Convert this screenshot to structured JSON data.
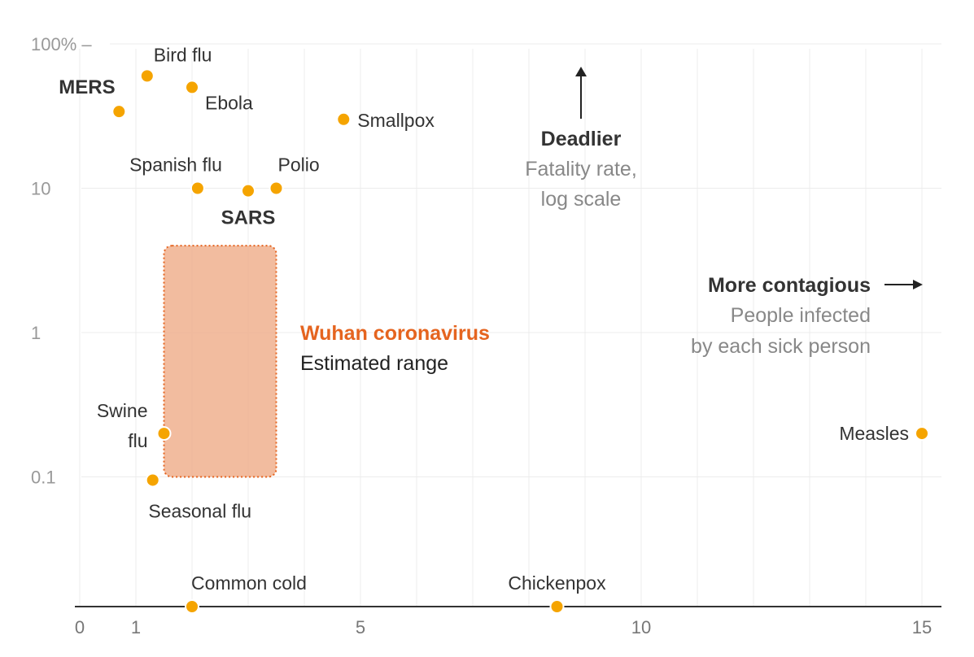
{
  "chart_data": {
    "type": "scatter",
    "x_axis": {
      "label": "People infected by each sick person",
      "range": [
        0,
        15.5
      ],
      "ticks": [
        0,
        1,
        5,
        10,
        15
      ],
      "tick_labels": [
        "0",
        "1",
        "5",
        "10",
        "15"
      ]
    },
    "y_axis": {
      "label": "Fatality rate, log scale",
      "scale": "log",
      "range_percent": [
        0.01,
        100
      ],
      "ticks": [
        100,
        10,
        1,
        0.1
      ],
      "tick_labels": [
        "100% –",
        "10",
        "1",
        "0.1"
      ]
    },
    "points": [
      {
        "name": "Bird flu",
        "x": 1.2,
        "y": 60,
        "bold": false
      },
      {
        "name": "MERS",
        "x": 0.7,
        "y": 34,
        "bold": true
      },
      {
        "name": "Ebola",
        "x": 2.0,
        "y": 50,
        "bold": false
      },
      {
        "name": "Smallpox",
        "x": 4.7,
        "y": 30,
        "bold": false
      },
      {
        "name": "Spanish flu",
        "x": 2.1,
        "y": 10,
        "bold": false
      },
      {
        "name": "SARS",
        "x": 3.0,
        "y": 9.6,
        "bold": true
      },
      {
        "name": "Polio",
        "x": 3.5,
        "y": 10,
        "bold": false
      },
      {
        "name": "Swine flu",
        "x": 1.5,
        "y": 0.2,
        "bold": false
      },
      {
        "name": "Seasonal flu",
        "x": 1.3,
        "y": 0.095,
        "bold": false
      },
      {
        "name": "Measles",
        "x": 15.0,
        "y": 0.2,
        "bold": false
      },
      {
        "name": "Common cold",
        "x": 2.0,
        "y": null,
        "bold": false
      },
      {
        "name": "Chickenpox",
        "x": 8.5,
        "y": null,
        "bold": false
      }
    ],
    "range_box": {
      "name": "Wuhan coronavirus",
      "subtitle": "Estimated range",
      "x_range": [
        1.5,
        3.5
      ],
      "y_range": [
        0.1,
        4
      ]
    },
    "annotations": {
      "deadlier_title": "Deadlier",
      "deadlier_line1": "Fatality rate,",
      "deadlier_line2": "log scale",
      "contagious_title": "More contagious",
      "contagious_line1": "People infected",
      "contagious_line2": "by each sick person"
    },
    "colors": {
      "point": "#f5a400",
      "range_fill": "#f0b08e",
      "range_border": "#e5641f",
      "highlight_text": "#e5641f"
    }
  }
}
